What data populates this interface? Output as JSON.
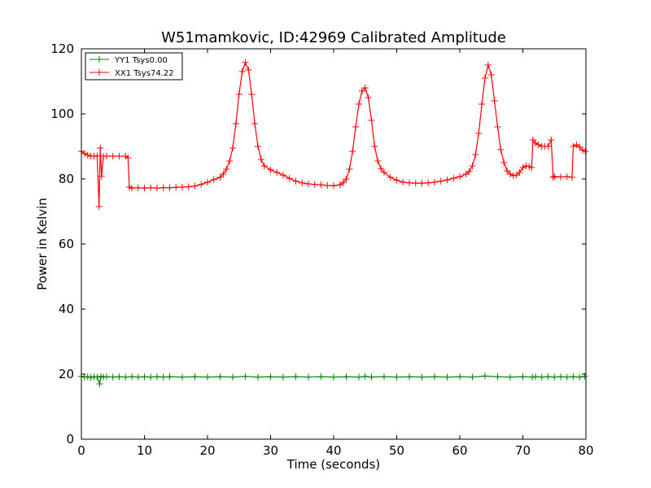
{
  "chart_data": {
    "type": "line",
    "title": "W51mamkovic, ID:42969 Calibrated Amplitude",
    "xlabel": "Time (seconds)",
    "ylabel": "Power in Kelvin",
    "xlim": [
      0,
      80
    ],
    "ylim": [
      0,
      120
    ],
    "xticks": [
      "0",
      "10",
      "20",
      "30",
      "40",
      "50",
      "60",
      "70",
      "80"
    ],
    "yticks": [
      "0",
      "20",
      "40",
      "60",
      "80",
      "100",
      "120"
    ],
    "grid": false,
    "legend_position": "top-left",
    "series": [
      {
        "name": "YY1 Tsys0.00",
        "color": "#008000",
        "marker": "plus",
        "points": [
          [
            0,
            19.3
          ],
          [
            0.5,
            19.1
          ],
          [
            1,
            19.2
          ],
          [
            1.5,
            19.0
          ],
          [
            2,
            19.2
          ],
          [
            2.5,
            19.1
          ],
          [
            2.9,
            17.0
          ],
          [
            3.1,
            19.3
          ],
          [
            3.5,
            19.1
          ],
          [
            4,
            19.2
          ],
          [
            5,
            19.1
          ],
          [
            6,
            19.2
          ],
          [
            7,
            19.1
          ],
          [
            8,
            19.2
          ],
          [
            9,
            19.1
          ],
          [
            10,
            19.2
          ],
          [
            11,
            19.1
          ],
          [
            12,
            19.2
          ],
          [
            13,
            19.1
          ],
          [
            14,
            19.2
          ],
          [
            16,
            19.1
          ],
          [
            18,
            19.2
          ],
          [
            20,
            19.1
          ],
          [
            22,
            19.2
          ],
          [
            24,
            19.1
          ],
          [
            26,
            19.3
          ],
          [
            28,
            19.1
          ],
          [
            30,
            19.2
          ],
          [
            32,
            19.1
          ],
          [
            34,
            19.2
          ],
          [
            36,
            19.1
          ],
          [
            38,
            19.2
          ],
          [
            40,
            19.1
          ],
          [
            42,
            19.2
          ],
          [
            44,
            19.1
          ],
          [
            45,
            19.3
          ],
          [
            46,
            19.1
          ],
          [
            48,
            19.2
          ],
          [
            50,
            19.1
          ],
          [
            52,
            19.2
          ],
          [
            54,
            19.1
          ],
          [
            56,
            19.2
          ],
          [
            58,
            19.1
          ],
          [
            60,
            19.2
          ],
          [
            62,
            19.1
          ],
          [
            64,
            19.4
          ],
          [
            66,
            19.2
          ],
          [
            68,
            19.1
          ],
          [
            70,
            19.2
          ],
          [
            71.5,
            19.1
          ],
          [
            72,
            19.2
          ],
          [
            73,
            19.1
          ],
          [
            74,
            19.2
          ],
          [
            75,
            19.1
          ],
          [
            76,
            19.2
          ],
          [
            77,
            19.1
          ],
          [
            78,
            19.2
          ],
          [
            79,
            19.1
          ],
          [
            79.8,
            19.3
          ]
        ]
      },
      {
        "name": "XX1 Tsys74.22",
        "color": "#ff0000",
        "marker": "plus",
        "points": [
          [
            0,
            88.5
          ],
          [
            0.5,
            87.8
          ],
          [
            1,
            87.3
          ],
          [
            1.5,
            87.0
          ],
          [
            2,
            87.0
          ],
          [
            2.5,
            87.1
          ],
          [
            2.8,
            71.5
          ],
          [
            3,
            89.5
          ],
          [
            3.2,
            80.8
          ],
          [
            3.5,
            87.0
          ],
          [
            4,
            87.0
          ],
          [
            5,
            87.0
          ],
          [
            6,
            87.0
          ],
          [
            7,
            87.0
          ],
          [
            7.4,
            86.5
          ],
          [
            7.6,
            77.5
          ],
          [
            8,
            77.2
          ],
          [
            9,
            77.3
          ],
          [
            10,
            77.2
          ],
          [
            11,
            77.3
          ],
          [
            12,
            77.2
          ],
          [
            13,
            77.3
          ],
          [
            14,
            77.3
          ],
          [
            15,
            77.4
          ],
          [
            16,
            77.5
          ],
          [
            17,
            77.6
          ],
          [
            18,
            77.8
          ],
          [
            19,
            78.3
          ],
          [
            20,
            79.0
          ],
          [
            21,
            79.8
          ],
          [
            22,
            80.5
          ],
          [
            22.5,
            81.5
          ],
          [
            23,
            83.0
          ],
          [
            23.5,
            85.5
          ],
          [
            24,
            89.5
          ],
          [
            24.5,
            97.0
          ],
          [
            25,
            106.0
          ],
          [
            25.5,
            113.0
          ],
          [
            26,
            115.8
          ],
          [
            26.5,
            113.5
          ],
          [
            27,
            106.0
          ],
          [
            27.5,
            97.0
          ],
          [
            28,
            90.0
          ],
          [
            28.5,
            86.0
          ],
          [
            29,
            84.0
          ],
          [
            30,
            82.8
          ],
          [
            31,
            82.0
          ],
          [
            32,
            81.2
          ],
          [
            33,
            80.2
          ],
          [
            34,
            79.3
          ],
          [
            35,
            78.8
          ],
          [
            36,
            78.5
          ],
          [
            37,
            78.3
          ],
          [
            38,
            78.2
          ],
          [
            39,
            78.0
          ],
          [
            40,
            77.9
          ],
          [
            41,
            78.2
          ],
          [
            41.5,
            78.8
          ],
          [
            42,
            80.0
          ],
          [
            42.5,
            83.0
          ],
          [
            43,
            88.5
          ],
          [
            43.5,
            96.0
          ],
          [
            44,
            103.0
          ],
          [
            44.5,
            107.0
          ],
          [
            45,
            108.0
          ],
          [
            45.5,
            105.0
          ],
          [
            46,
            98.0
          ],
          [
            46.5,
            90.0
          ],
          [
            47,
            85.5
          ],
          [
            47.5,
            83.2
          ],
          [
            48,
            82.0
          ],
          [
            49,
            80.5
          ],
          [
            50,
            79.6
          ],
          [
            51,
            79.0
          ],
          [
            52,
            78.8
          ],
          [
            53,
            78.7
          ],
          [
            54,
            78.7
          ],
          [
            55,
            78.8
          ],
          [
            56,
            79.0
          ],
          [
            57,
            79.3
          ],
          [
            58,
            79.7
          ],
          [
            59,
            80.2
          ],
          [
            60,
            80.7
          ],
          [
            61,
            81.5
          ],
          [
            61.5,
            82.3
          ],
          [
            62,
            84.0
          ],
          [
            62.5,
            87.5
          ],
          [
            63,
            94.0
          ],
          [
            63.5,
            103.0
          ],
          [
            64,
            111.0
          ],
          [
            64.5,
            115.0
          ],
          [
            65,
            112.0
          ],
          [
            65.5,
            104.0
          ],
          [
            66,
            96.0
          ],
          [
            66.5,
            89.0
          ],
          [
            67,
            85.0
          ],
          [
            67.5,
            82.5
          ],
          [
            68,
            81.5
          ],
          [
            68.5,
            81.0
          ],
          [
            69,
            81.2
          ],
          [
            69.5,
            82.0
          ],
          [
            70,
            83.5
          ],
          [
            70.5,
            84.0
          ],
          [
            71,
            83.8
          ],
          [
            71.4,
            83.5
          ],
          [
            71.6,
            92.0
          ],
          [
            72,
            91.0
          ],
          [
            72.5,
            90.5
          ],
          [
            73,
            90.0
          ],
          [
            73.5,
            90.0
          ],
          [
            74,
            90.0
          ],
          [
            74.5,
            92.0
          ],
          [
            74.8,
            80.5
          ],
          [
            75,
            80.8
          ],
          [
            76,
            80.6
          ],
          [
            77,
            80.7
          ],
          [
            77.8,
            80.5
          ],
          [
            78,
            90.0
          ],
          [
            78.5,
            90.5
          ],
          [
            79,
            89.8
          ],
          [
            79.5,
            88.8
          ],
          [
            79.9,
            88.5
          ]
        ]
      }
    ]
  }
}
